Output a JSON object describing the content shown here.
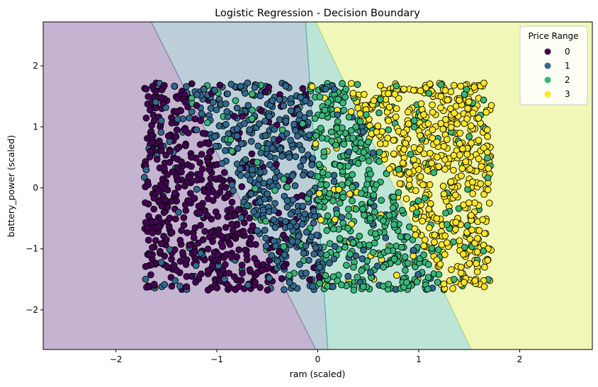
{
  "chart_data": {
    "type": "scatter",
    "title": "Logistic Regression - Decision Boundary",
    "xlabel": "ram (scaled)",
    "ylabel": "battery_power (scaled)",
    "xlim": [
      -2.72,
      2.72
    ],
    "ylim": [
      -2.65,
      2.72
    ],
    "xticks": [
      -2,
      -1,
      0,
      1,
      2
    ],
    "yticks": [
      -2,
      -1,
      0,
      1,
      2
    ],
    "grid": false,
    "legend": {
      "title": "Price Range",
      "position": "top-right",
      "entries": [
        "0",
        "1",
        "2",
        "3"
      ]
    },
    "class_colors": [
      "#440154",
      "#31688e",
      "#35b779",
      "#fde725"
    ],
    "region_colors": [
      "#c4b4d1",
      "#bccfd9",
      "#bce5d8",
      "#f1f7b7"
    ],
    "decision_boundaries": [
      {
        "between": [
          "0",
          "1"
        ],
        "points": [
          [
            -1.65,
            2.72
          ],
          [
            -0.02,
            -2.65
          ]
        ]
      },
      {
        "between": [
          "1",
          "2"
        ],
        "points": [
          [
            -0.12,
            2.72
          ],
          [
            0.1,
            -2.65
          ]
        ]
      },
      {
        "between": [
          "2",
          "3"
        ],
        "points": [
          [
            -0.02,
            2.72
          ],
          [
            1.52,
            -2.65
          ]
        ]
      }
    ],
    "point_cloud": {
      "count": 2000,
      "x_range": [
        -1.72,
        1.72
      ],
      "y_range": [
        -1.68,
        1.72
      ],
      "note": "points fill this rectangle; each point is colored by its true price range"
    },
    "series": [
      {
        "name": "0",
        "points": [
          [
            -1.7,
            1.62
          ],
          [
            -1.55,
            1.48
          ],
          [
            -1.62,
            1.1
          ],
          [
            -1.48,
            0.85
          ],
          [
            -1.66,
            0.6
          ],
          [
            -1.52,
            0.32
          ],
          [
            -1.68,
            0.05
          ],
          [
            -1.45,
            -0.22
          ],
          [
            -1.6,
            -0.55
          ],
          [
            -1.5,
            -0.85
          ],
          [
            -1.67,
            -1.1
          ],
          [
            -1.4,
            -1.35
          ],
          [
            -1.62,
            -1.58
          ],
          [
            -1.3,
            -1.62
          ],
          [
            -1.22,
            -1.05
          ],
          [
            -1.35,
            -0.7
          ],
          [
            -1.18,
            -0.3
          ],
          [
            -1.28,
            0.18
          ],
          [
            -1.15,
            0.55
          ],
          [
            -1.32,
            0.95
          ],
          [
            -1.2,
            1.35
          ],
          [
            -1.05,
            1.55
          ],
          [
            -1.08,
            0.72
          ],
          [
            -1.0,
            -0.12
          ],
          [
            -0.95,
            -0.8
          ],
          [
            -0.88,
            -1.4
          ],
          [
            -0.78,
            -1.62
          ],
          [
            -0.7,
            -1.18
          ],
          [
            -0.82,
            -0.45
          ],
          [
            -1.4,
            1.25
          ],
          [
            -1.58,
            -0.05
          ],
          [
            -1.25,
            -1.45
          ],
          [
            -0.62,
            -1.55
          ],
          [
            -0.55,
            -1.35
          ]
        ]
      },
      {
        "name": "1",
        "points": [
          [
            -1.55,
            1.1
          ],
          [
            -1.38,
            -0.4
          ],
          [
            -1.2,
            0.95
          ],
          [
            -1.02,
            1.6
          ],
          [
            -0.9,
            1.25
          ],
          [
            -0.8,
            0.85
          ],
          [
            -0.72,
            1.55
          ],
          [
            -0.65,
            0.3
          ],
          [
            -0.58,
            1.05
          ],
          [
            -0.5,
            -0.1
          ],
          [
            -0.45,
            0.65
          ],
          [
            -0.38,
            1.45
          ],
          [
            -0.32,
            -0.55
          ],
          [
            -0.25,
            0.2
          ],
          [
            -0.18,
            1.2
          ],
          [
            -0.12,
            -0.95
          ],
          [
            -0.05,
            0.48
          ],
          [
            0.02,
            -1.3
          ],
          [
            -0.4,
            -1.2
          ],
          [
            -0.6,
            -0.7
          ],
          [
            -0.28,
            -1.55
          ],
          [
            -0.15,
            -0.3
          ],
          [
            0.08,
            1.62
          ],
          [
            0.15,
            -1.62
          ],
          [
            0.3,
            -1.45
          ],
          [
            -0.85,
            0.05
          ],
          [
            -0.48,
            -1.48
          ],
          [
            -0.2,
            0.85
          ],
          [
            0.42,
            -1.55
          ],
          [
            -0.95,
            0.4
          ],
          [
            0.45,
            0.92
          ]
        ]
      },
      {
        "name": "2",
        "points": [
          [
            -0.85,
            0.6
          ],
          [
            -0.6,
            0.42
          ],
          [
            -0.35,
            0.95
          ],
          [
            -0.15,
            1.05
          ],
          [
            0.05,
            0.25
          ],
          [
            0.1,
            1.4
          ],
          [
            0.18,
            0.7
          ],
          [
            0.22,
            -0.25
          ],
          [
            0.28,
            1.62
          ],
          [
            0.35,
            -0.9
          ],
          [
            0.4,
            0.4
          ],
          [
            0.48,
            1.2
          ],
          [
            0.52,
            -0.5
          ],
          [
            0.58,
            0.05
          ],
          [
            0.65,
            -1.3
          ],
          [
            0.7,
            0.95
          ],
          [
            0.75,
            -0.15
          ],
          [
            0.82,
            -0.8
          ],
          [
            0.88,
            -1.55
          ],
          [
            0.92,
            0.55
          ],
          [
            0.98,
            -0.4
          ],
          [
            1.05,
            -1.1
          ],
          [
            1.1,
            1.55
          ],
          [
            1.15,
            0.25
          ],
          [
            1.2,
            -1.42
          ],
          [
            1.28,
            -0.6
          ],
          [
            1.35,
            -1.5
          ],
          [
            0.62,
            1.45
          ],
          [
            0.3,
            0.08
          ],
          [
            0.45,
            -1.62
          ],
          [
            0.8,
            0.3
          ],
          [
            0.38,
            -0.35
          ],
          [
            0.7,
            -1.58
          ]
        ]
      },
      {
        "name": "3",
        "points": [
          [
            0.35,
            1.55
          ],
          [
            0.62,
            1.68
          ],
          [
            0.78,
            1.3
          ],
          [
            0.85,
            0.9
          ],
          [
            0.95,
            1.6
          ],
          [
            1.0,
            0.3
          ],
          [
            1.05,
            1.2
          ],
          [
            1.1,
            -0.35
          ],
          [
            1.18,
            0.75
          ],
          [
            1.22,
            1.5
          ],
          [
            1.28,
            -0.9
          ],
          [
            1.32,
            0.1
          ],
          [
            1.38,
            1.05
          ],
          [
            1.42,
            -1.3
          ],
          [
            1.48,
            0.55
          ],
          [
            1.52,
            -0.45
          ],
          [
            1.55,
            1.65
          ],
          [
            1.58,
            -1.05
          ],
          [
            1.62,
            0.35
          ],
          [
            1.65,
            -1.62
          ],
          [
            1.68,
            0.95
          ],
          [
            1.7,
            -0.25
          ],
          [
            1.72,
            1.35
          ],
          [
            1.45,
            -1.55
          ],
          [
            1.6,
            -0.7
          ],
          [
            0.9,
            1.05
          ],
          [
            1.35,
            1.68
          ],
          [
            0.7,
            1.1
          ],
          [
            1.25,
            -0.1
          ],
          [
            1.05,
            -0.95
          ]
        ]
      }
    ]
  }
}
